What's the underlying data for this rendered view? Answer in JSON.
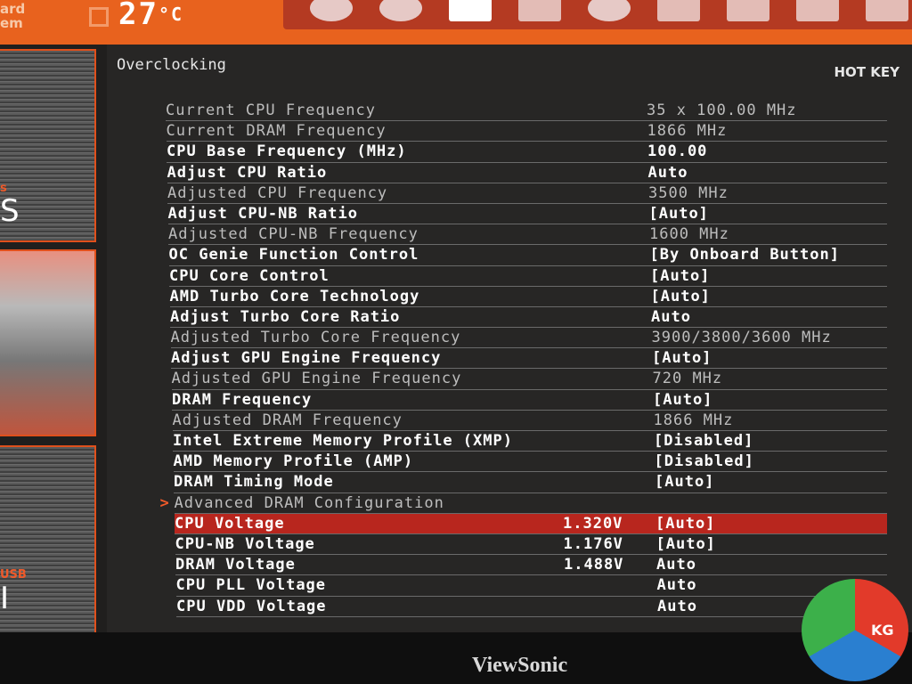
{
  "header": {
    "brand_line1": "ard",
    "brand_line2": "em",
    "temperature": "27",
    "temperature_unit": "°C",
    "boot_devices": [
      "disc",
      "disc",
      "usb",
      "drive",
      "disc",
      "drive",
      "drive",
      "drive",
      "drive"
    ]
  },
  "sidebar": {
    "tile1_sub": "s",
    "tile1_main": "S",
    "tile3_sub": "USB",
    "tile3_main": "I"
  },
  "main": {
    "title": "Overclocking",
    "hotkey": "HOT KEY",
    "rows": [
      {
        "label": "Current CPU Frequency",
        "value": "35 x 100.00 MHz",
        "voltage": "",
        "style": "gray"
      },
      {
        "label": "Current DRAM Frequency",
        "value": "1866 MHz",
        "voltage": "",
        "style": "gray"
      },
      {
        "label": "CPU Base Frequency (MHz)",
        "value": "100.00",
        "voltage": "",
        "style": "white"
      },
      {
        "label": "Adjust CPU Ratio",
        "value": "Auto",
        "voltage": "",
        "style": "white"
      },
      {
        "label": "Adjusted CPU Frequency",
        "value": "3500 MHz",
        "voltage": "",
        "style": "gray"
      },
      {
        "label": "Adjust CPU-NB Ratio",
        "value": "[Auto]",
        "voltage": "",
        "style": "white"
      },
      {
        "label": "Adjusted CPU-NB Frequency",
        "value": "1600 MHz",
        "voltage": "",
        "style": "gray"
      },
      {
        "label": "OC Genie Function Control",
        "value": "[By Onboard Button]",
        "voltage": "",
        "style": "white"
      },
      {
        "label": "CPU Core Control",
        "value": "[Auto]",
        "voltage": "",
        "style": "white"
      },
      {
        "label": "AMD Turbo Core Technology",
        "value": "[Auto]",
        "voltage": "",
        "style": "white"
      },
      {
        "label": "Adjust Turbo Core Ratio",
        "value": "Auto",
        "voltage": "",
        "style": "white"
      },
      {
        "label": "Adjusted Turbo Core Frequency",
        "value": "3900/3800/3600 MHz",
        "voltage": "",
        "style": "gray"
      },
      {
        "label": "Adjust GPU Engine Frequency",
        "value": "[Auto]",
        "voltage": "",
        "style": "white"
      },
      {
        "label": "Adjusted GPU Engine Frequency",
        "value": "720 MHz",
        "voltage": "",
        "style": "gray"
      },
      {
        "label": "DRAM Frequency",
        "value": "[Auto]",
        "voltage": "",
        "style": "white"
      },
      {
        "label": "Adjusted DRAM Frequency",
        "value": "1866 MHz",
        "voltage": "",
        "style": "gray"
      },
      {
        "label": "Intel Extreme Memory Profile (XMP)",
        "value": "[Disabled]",
        "voltage": "",
        "style": "white"
      },
      {
        "label": "AMD Memory Profile (AMP)",
        "value": "[Disabled]",
        "voltage": "",
        "style": "white"
      },
      {
        "label": "DRAM Timing Mode",
        "value": "[Auto]",
        "voltage": "",
        "style": "white"
      },
      {
        "label": "Advanced DRAM Configuration",
        "value": "",
        "voltage": "",
        "style": "submenu"
      },
      {
        "label": "CPU Voltage",
        "value": "[Auto]",
        "voltage": "1.320V",
        "style": "selected"
      },
      {
        "label": "CPU-NB Voltage",
        "value": "[Auto]",
        "voltage": "1.176V",
        "style": "white"
      },
      {
        "label": "DRAM Voltage",
        "value": "Auto",
        "voltage": "1.488V",
        "style": "white"
      },
      {
        "label": "CPU PLL Voltage",
        "value": "Auto",
        "voltage": "",
        "style": "white"
      },
      {
        "label": "CPU VDD Voltage",
        "value": "Auto",
        "voltage": "",
        "style": "white"
      }
    ],
    "submenu_arrow": ">"
  },
  "monitor": {
    "brand": "ViewSonic",
    "watermark": "KG"
  },
  "colors": {
    "accent": "#e8621e",
    "highlight": "#b8261e",
    "background": "#272625"
  }
}
